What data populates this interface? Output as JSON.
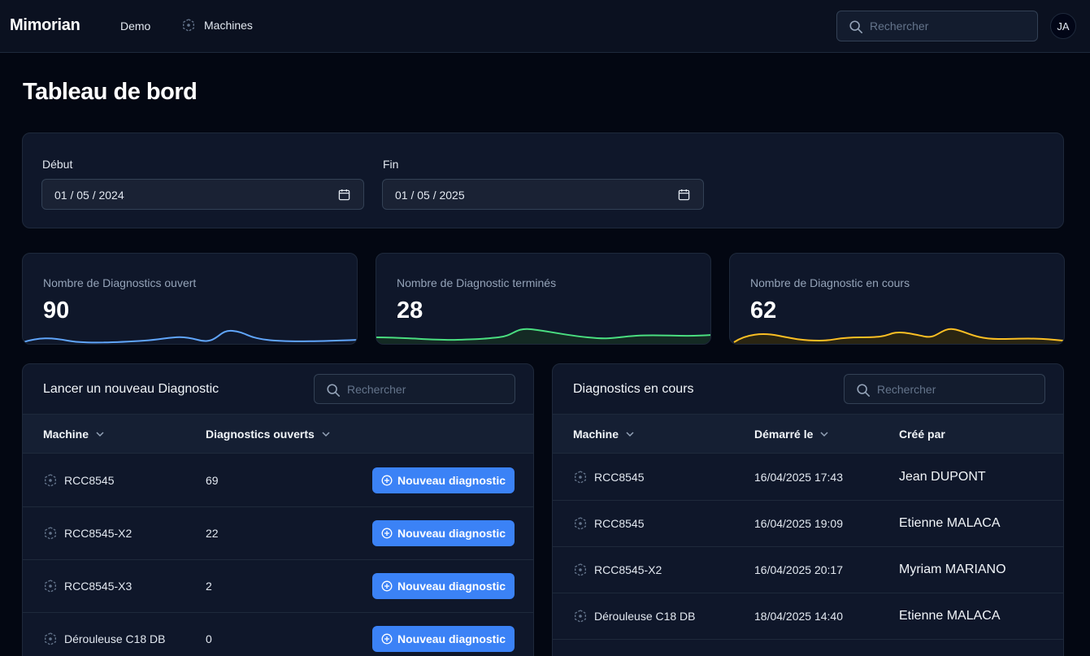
{
  "app": {
    "brand": "Mimorian"
  },
  "nav": {
    "demo": "Demo",
    "machines": "Machines"
  },
  "top_search": {
    "placeholder": "Rechercher"
  },
  "user": {
    "initials": "JA"
  },
  "page": {
    "title": "Tableau de bord"
  },
  "date_filter": {
    "start_label": "Début",
    "start_value": "01 / 05 / 2024",
    "end_label": "Fin",
    "end_value": "01 / 05 / 2025"
  },
  "stats": [
    {
      "label": "Nombre de Diagnostics ouvert",
      "value": "90",
      "color": "#60a5fa"
    },
    {
      "label": "Nombre de Diagnostic terminés",
      "value": "28",
      "color": "#4ade80"
    },
    {
      "label": "Nombre de Diagnostic en cours",
      "value": "62",
      "color": "#fbbf24"
    }
  ],
  "new_diag": {
    "title": "Lancer un nouveau Diagnostic",
    "search_placeholder": "Rechercher",
    "col_machine": "Machine",
    "col_open": "Diagnostics ouverts",
    "button_label": "Nouveau diagnostic",
    "rows": [
      {
        "machine": "RCC8545",
        "open": "69"
      },
      {
        "machine": "RCC8545-X2",
        "open": "22"
      },
      {
        "machine": "RCC8545-X3",
        "open": "2"
      },
      {
        "machine": "Dérouleuse C18 DB",
        "open": "0"
      }
    ]
  },
  "ongoing": {
    "title": "Diagnostics en cours",
    "search_placeholder": "Rechercher",
    "col_machine": "Machine",
    "col_started": "Démarré le",
    "col_creator": "Créé par",
    "rows": [
      {
        "machine": "RCC8545",
        "started": "16/04/2025 17:43",
        "creator": "Jean DUPONT"
      },
      {
        "machine": "RCC8545",
        "started": "16/04/2025 19:09",
        "creator": "Etienne MALACA"
      },
      {
        "machine": "RCC8545-X2",
        "started": "16/04/2025 20:17",
        "creator": "Myriam MARIANO"
      },
      {
        "machine": "Dérouleuse C18 DB",
        "started": "18/04/2025 14:40",
        "creator": "Etienne MALACA"
      }
    ]
  },
  "icons": {
    "search": "search-icon",
    "calendar": "calendar-icon",
    "machine": "machine-icon",
    "sort": "chevron-down-icon",
    "add": "plus-circle-icon"
  }
}
